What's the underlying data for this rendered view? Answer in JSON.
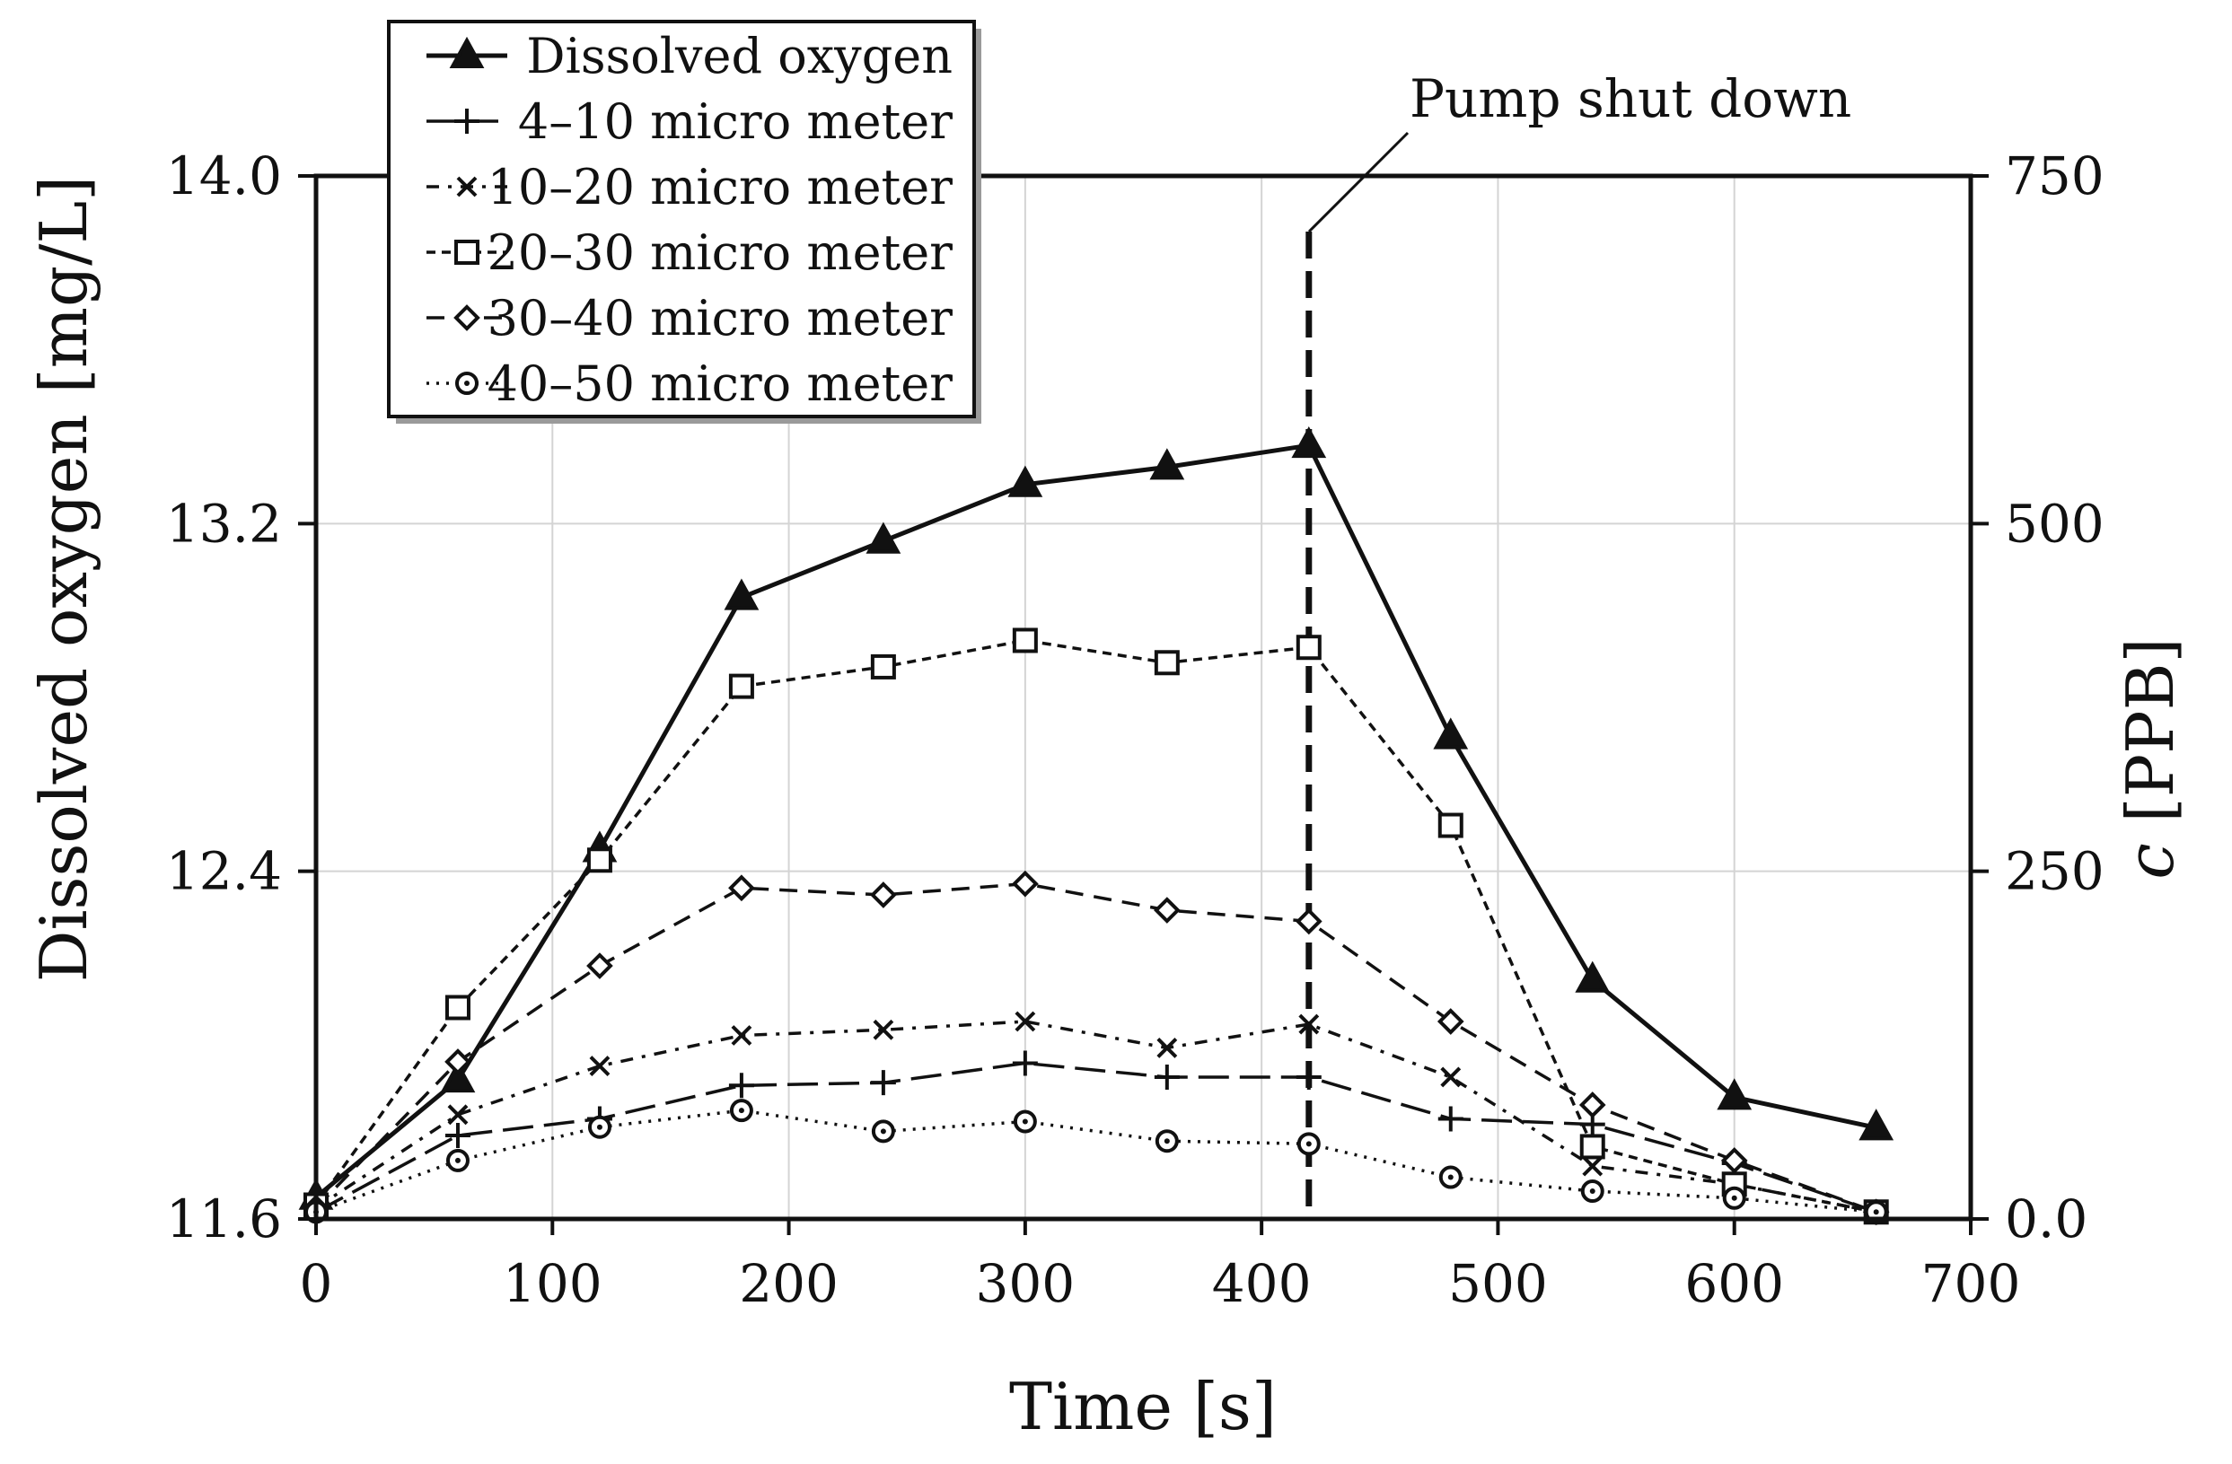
{
  "chart_data": {
    "type": "line",
    "title": "",
    "xlabel": "Time [s]",
    "ylabel_left": "Dissolved oxygen [mg/L]",
    "ylabel_right_symbol": "c",
    "ylabel_right_unit": "[PPB]",
    "xlim": [
      0,
      700
    ],
    "ylim_left": [
      11.6,
      14.0
    ],
    "ylim_right": [
      0,
      750
    ],
    "x_ticks": [
      "0",
      "100",
      "200",
      "300",
      "400",
      "500",
      "600",
      "700"
    ],
    "y_left_ticks": [
      "11.6",
      "12.4",
      "13.2",
      "14.0"
    ],
    "y_right_ticks": [
      "0.0",
      "250",
      "500",
      "750"
    ],
    "grid": true,
    "legend_position": "top-left",
    "annotation": {
      "text": "Pump shut down",
      "x": 420
    },
    "x": [
      0,
      60,
      120,
      180,
      240,
      300,
      360,
      420,
      480,
      540,
      600,
      660
    ],
    "series": [
      {
        "name": "Dissolved oxygen",
        "axis": "left",
        "marker": "triangle",
        "dash": "solid",
        "values": [
          11.65,
          11.92,
          12.45,
          13.03,
          13.16,
          13.29,
          13.33,
          13.38,
          12.71,
          12.15,
          11.88,
          11.81
        ]
      },
      {
        "name": "4–10 micro meter",
        "axis": "right",
        "marker": "plus",
        "dash": "longdash",
        "values": [
          5,
          60,
          72,
          96,
          98,
          112,
          102,
          102,
          72,
          68,
          40,
          5
        ]
      },
      {
        "name": "10–20 micro meter",
        "axis": "right",
        "marker": "x",
        "dash": "dashdot",
        "values": [
          8,
          75,
          110,
          132,
          136,
          142,
          123,
          140,
          102,
          38,
          25,
          5
        ]
      },
      {
        "name": "20–30 micro meter",
        "axis": "right",
        "marker": "square",
        "dash": "shortdash",
        "values": [
          10,
          152,
          258,
          383,
          397,
          416,
          400,
          411,
          283,
          52,
          25,
          5
        ]
      },
      {
        "name": "30–40 micro meter",
        "axis": "right",
        "marker": "diamond",
        "dash": "dash",
        "values": [
          8,
          113,
          182,
          238,
          233,
          241,
          222,
          214,
          142,
          82,
          42,
          5
        ]
      },
      {
        "name": "40–50 micro meter",
        "axis": "right",
        "marker": "circle",
        "dash": "dotted",
        "values": [
          5,
          42,
          66,
          78,
          63,
          70,
          56,
          54,
          30,
          20,
          15,
          5
        ]
      }
    ]
  }
}
